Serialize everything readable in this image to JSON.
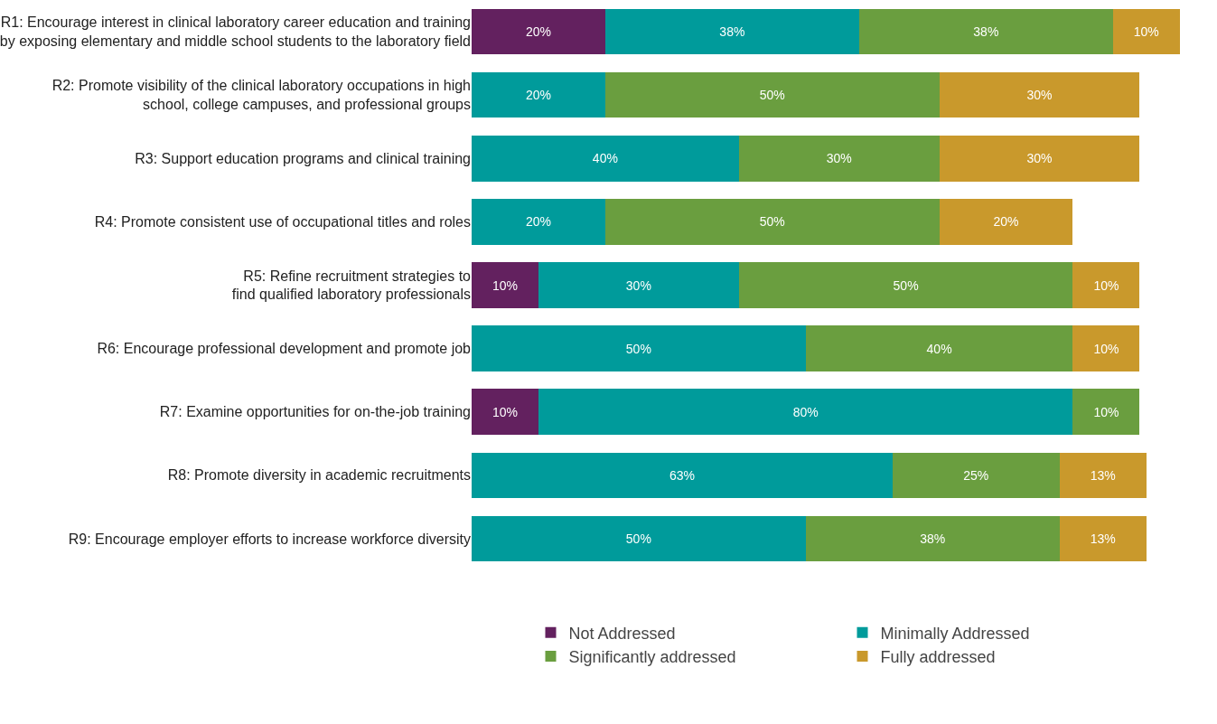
{
  "chart_data": {
    "type": "bar",
    "orientation": "horizontal",
    "stacked": true,
    "legend": "bottom",
    "tick_labels": "y",
    "categories": [
      "R1: Encourage interest in clinical laboratory career education and training\nby exposing elementary and middle school students to the laboratory field",
      "R2: Promote visibility of the clinical laboratory occupations in high\nschool, college campuses, and professional groups",
      "R3: Support education programs and clinical training",
      "R4: Promote consistent use of occupational titles and roles",
      "R5: Refine recruitment strategies to\nfind qualified laboratory professionals",
      "R6: Encourage professional development and promote job",
      "R7: Examine opportunities for on-the-job training",
      "R8: Promote diversity in academic recruitments",
      "R9: Encourage employer efforts to increase workforce diversity"
    ],
    "series": [
      {
        "name": "Not Addressed",
        "color": "#63215f",
        "values": [
          20,
          null,
          null,
          null,
          10,
          null,
          10,
          null,
          null
        ],
        "value_labels": [
          "20%",
          null,
          null,
          null,
          "10%",
          null,
          "10%",
          null,
          null
        ]
      },
      {
        "name": "Minimally Addressed",
        "color": "#009b9b",
        "values": [
          38,
          20,
          40,
          20,
          30,
          50,
          80,
          63,
          50
        ],
        "value_labels": [
          "38%",
          "20%",
          "40%",
          "20%",
          "30%",
          "50%",
          "80%",
          "63%",
          "50%"
        ]
      },
      {
        "name": "Significantly addressed",
        "color": "#6a9e3f",
        "values": [
          38,
          50,
          30,
          50,
          50,
          40,
          10,
          25,
          38
        ],
        "value_labels": [
          "38%",
          "50%",
          "30%",
          "50%",
          "50%",
          "40%",
          "10%",
          "25%",
          "38%"
        ]
      },
      {
        "name": "Fully addressed",
        "color": "#c9992c",
        "values": [
          10,
          30,
          30,
          20,
          10,
          10,
          null,
          13,
          13
        ],
        "value_labels": [
          "10%",
          "30%",
          "30%",
          "20%",
          "10%",
          "10%",
          null,
          "13%",
          "13%"
        ]
      }
    ]
  }
}
